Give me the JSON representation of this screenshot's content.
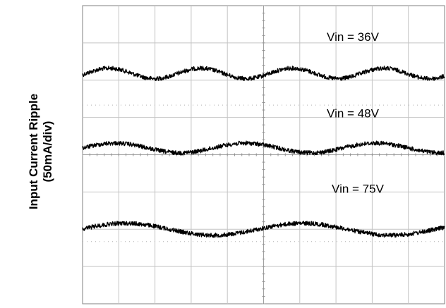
{
  "chart_data": {
    "type": "line",
    "title": "",
    "xlabel": "",
    "ylabel": "Input Current Ripple",
    "ylabel_unit": "(50mA/div)",
    "grid": true,
    "grid_divisions": {
      "x": 10,
      "y": 8
    },
    "xlim": [
      0,
      10
    ],
    "ylim": [
      0,
      8
    ],
    "series": [
      {
        "name": "Vin = 36V",
        "offset_div": 6.18,
        "amplitude_div": 0.14,
        "period_div": 2.53,
        "phase_div": 0.1,
        "color": "#000000"
      },
      {
        "name": "Vin = 48V",
        "offset_div": 4.18,
        "amplitude_div": 0.13,
        "period_div": 3.6,
        "phase_div": 0.0,
        "color": "#000000"
      },
      {
        "name": "Vin = 75V",
        "offset_div": 2.0,
        "amplitude_div": 0.16,
        "period_div": 4.9,
        "phase_div": -0.05,
        "color": "#000000"
      }
    ]
  }
}
